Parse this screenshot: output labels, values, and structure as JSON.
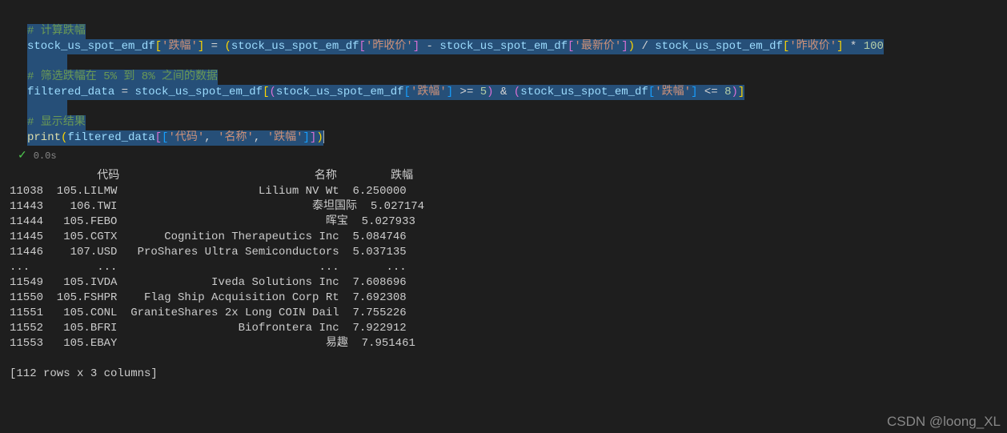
{
  "code": {
    "comment1_bg": "#264f78",
    "comment1": "# 计算跌幅",
    "line2": {
      "var1": "stock_us_spot_em_df",
      "str_diefu": "'跌幅'",
      "eq": " = ",
      "var2": "stock_us_spot_em_df",
      "str_zuoshou": "'昨收价'",
      "minus": " - ",
      "var3": "stock_us_spot_em_df",
      "str_zuixin": "'最新价'",
      "div": " / ",
      "var4": "stock_us_spot_em_df",
      "str_zuoshou2": "'昨收价'",
      "mult": " * ",
      "num100": "100"
    },
    "comment2": "# 筛选跌幅在 5% 到 8% 之间的数据",
    "line4": {
      "var_filtered": "filtered_data",
      "eq": " = ",
      "var1": "stock_us_spot_em_df",
      "var2": "stock_us_spot_em_df",
      "str_diefu1": "'跌幅'",
      "ge": " >= ",
      "num5": "5",
      "and": " & ",
      "var3": "stock_us_spot_em_df",
      "str_diefu2": "'跌幅'",
      "le": " <= ",
      "num8": "8"
    },
    "comment3": "# 显示结果",
    "line6": {
      "print": "print",
      "var_filtered": "filtered_data",
      "str_code": "'代码'",
      "str_name": "'名称'",
      "str_diefu": "'跌幅'"
    }
  },
  "status": {
    "time": "0.0s"
  },
  "output": {
    "header": "             代码                             名称        跌幅",
    "rows": [
      "11038  105.LILMW                     Lilium NV Wt  6.250000",
      "11443    106.TWI                             泰坦国际  5.027174",
      "11444   105.FEBO                               晖宝  5.027933",
      "11445   105.CGTX       Cognition Therapeutics Inc  5.084746",
      "11446    107.USD   ProShares Ultra Semiconductors  5.037135",
      "...          ...                              ...       ...",
      "11549   105.IVDA              Iveda Solutions Inc  7.608696",
      "11550  105.FSHPR    Flag Ship Acquisition Corp Rt  7.692308",
      "11551   105.CONL  GraniteShares 2x Long COIN Dail  7.755226",
      "11552   105.BFRI                  Biofrontera Inc  7.922912",
      "11553   105.EBAY                               易趣  7.951461"
    ],
    "footer": "[112 rows x 3 columns]"
  },
  "watermark": "CSDN @loong_XL"
}
